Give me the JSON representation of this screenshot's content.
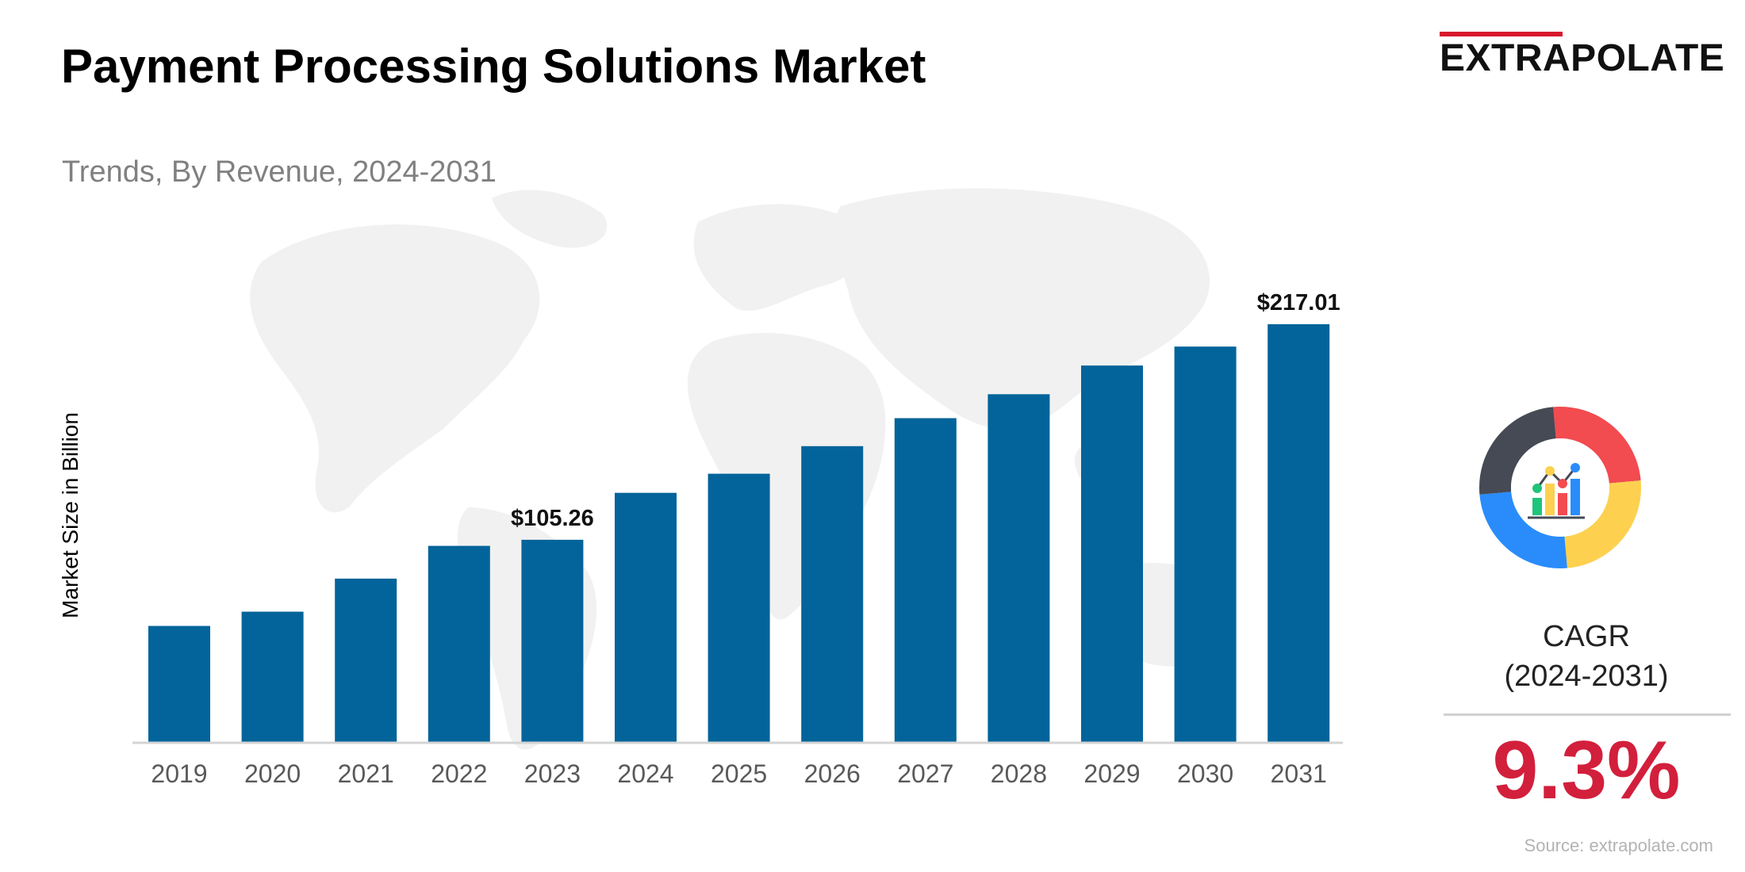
{
  "title": "Payment Processing Solutions Market",
  "subtitle": "Trends, By Revenue, 2024-2031",
  "logo": "EXTRAPOLATE",
  "cagr": {
    "label_line1": "CAGR",
    "label_line2": "(2024-2031)",
    "value": "9.3%"
  },
  "source": "Source: extrapolate.com",
  "colors": {
    "bar": "#02649a",
    "cagr": "#d21f3c",
    "logo_accent": "#d7192c"
  },
  "icons": [
    "world-map-background",
    "growth-chart-icon"
  ],
  "chart_data": {
    "type": "bar",
    "title": "Payment Processing Solutions Market",
    "subtitle": "Trends, By Revenue, 2024-2031",
    "xlabel": "",
    "ylabel": "Market Size in Billion",
    "categories": [
      "2019",
      "2020",
      "2021",
      "2022",
      "2023",
      "2024",
      "2025",
      "2026",
      "2027",
      "2028",
      "2029",
      "2030",
      "2031"
    ],
    "values": [
      60.6,
      68.0,
      85.1,
      102.1,
      105.26,
      129.6,
      139.5,
      153.8,
      168.3,
      180.7,
      195.6,
      205.4,
      217.01
    ],
    "data_labels": [
      {
        "category": "2023",
        "text": "$105.26"
      },
      {
        "category": "2031",
        "text": "$217.01"
      }
    ],
    "ylim": [
      0,
      217.01
    ],
    "grid": false,
    "legend": "none"
  }
}
